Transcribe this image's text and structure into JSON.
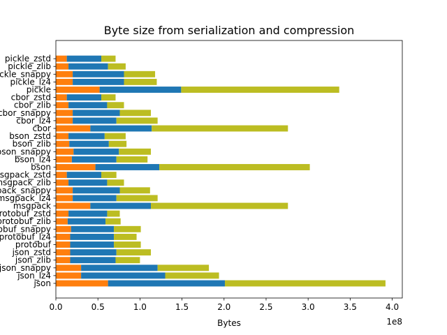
{
  "chart_data": {
    "type": "bar",
    "orientation": "horizontal",
    "stacked": true,
    "title": "Byte size from serialization and compression",
    "xlabel": "Bytes",
    "ylabel": "",
    "x_offset_label": "1e8",
    "xlim": [
      0,
      4.12
    ],
    "x_ticks": [
      0.0,
      0.5,
      1.0,
      1.5,
      2.0,
      2.5,
      3.0,
      3.5,
      4.0
    ],
    "x_tick_labels": [
      "0.0",
      "0.5",
      "1.0",
      "1.5",
      "2.0",
      "2.5",
      "3.0",
      "3.5",
      "4.0"
    ],
    "grid": false,
    "legend": "none",
    "categories": [
      "json",
      "json_lz4",
      "json_snappy",
      "json_zlib",
      "json_zstd",
      "protobuf",
      "protobuf_lz4",
      "protobuf_snappy",
      "protobuf_zlib",
      "protobuf_zstd",
      "msgpack",
      "msgpack_lz4",
      "msgpack_snappy",
      "msgpack_zlib",
      "msgpack_zstd",
      "bson",
      "bson_lz4",
      "bson_snappy",
      "bson_zlib",
      "bson_zstd",
      "cbor",
      "cbor_lz4",
      "cbor_snappy",
      "cbor_zlib",
      "cbor_zstd",
      "pickle",
      "pickle_lz4",
      "pickle_snappy",
      "pickle_zlib",
      "pickle_zstd"
    ],
    "series": [
      {
        "color": "#ff7f0e",
        "values": [
          0.62,
          0.3,
          0.3,
          0.17,
          0.17,
          0.17,
          0.17,
          0.18,
          0.14,
          0.15,
          0.41,
          0.2,
          0.2,
          0.15,
          0.13,
          0.47,
          0.19,
          0.21,
          0.16,
          0.15,
          0.41,
          0.2,
          0.2,
          0.15,
          0.13,
          0.52,
          0.2,
          0.2,
          0.15,
          0.13
        ]
      },
      {
        "color": "#1f77b4",
        "values": [
          1.39,
          1.0,
          0.91,
          0.54,
          0.55,
          0.52,
          0.52,
          0.51,
          0.45,
          0.46,
          0.72,
          0.52,
          0.56,
          0.46,
          0.41,
          0.76,
          0.53,
          0.54,
          0.47,
          0.43,
          0.73,
          0.52,
          0.56,
          0.46,
          0.41,
          0.97,
          0.61,
          0.61,
          0.47,
          0.41
        ]
      },
      {
        "color": "#bcbd22",
        "values": [
          1.91,
          0.64,
          0.61,
          0.29,
          0.41,
          0.32,
          0.27,
          0.32,
          0.18,
          0.15,
          1.63,
          0.49,
          0.36,
          0.2,
          0.18,
          1.79,
          0.37,
          0.38,
          0.21,
          0.25,
          1.62,
          0.49,
          0.37,
          0.2,
          0.17,
          1.88,
          0.39,
          0.37,
          0.21,
          0.17
        ]
      }
    ]
  }
}
